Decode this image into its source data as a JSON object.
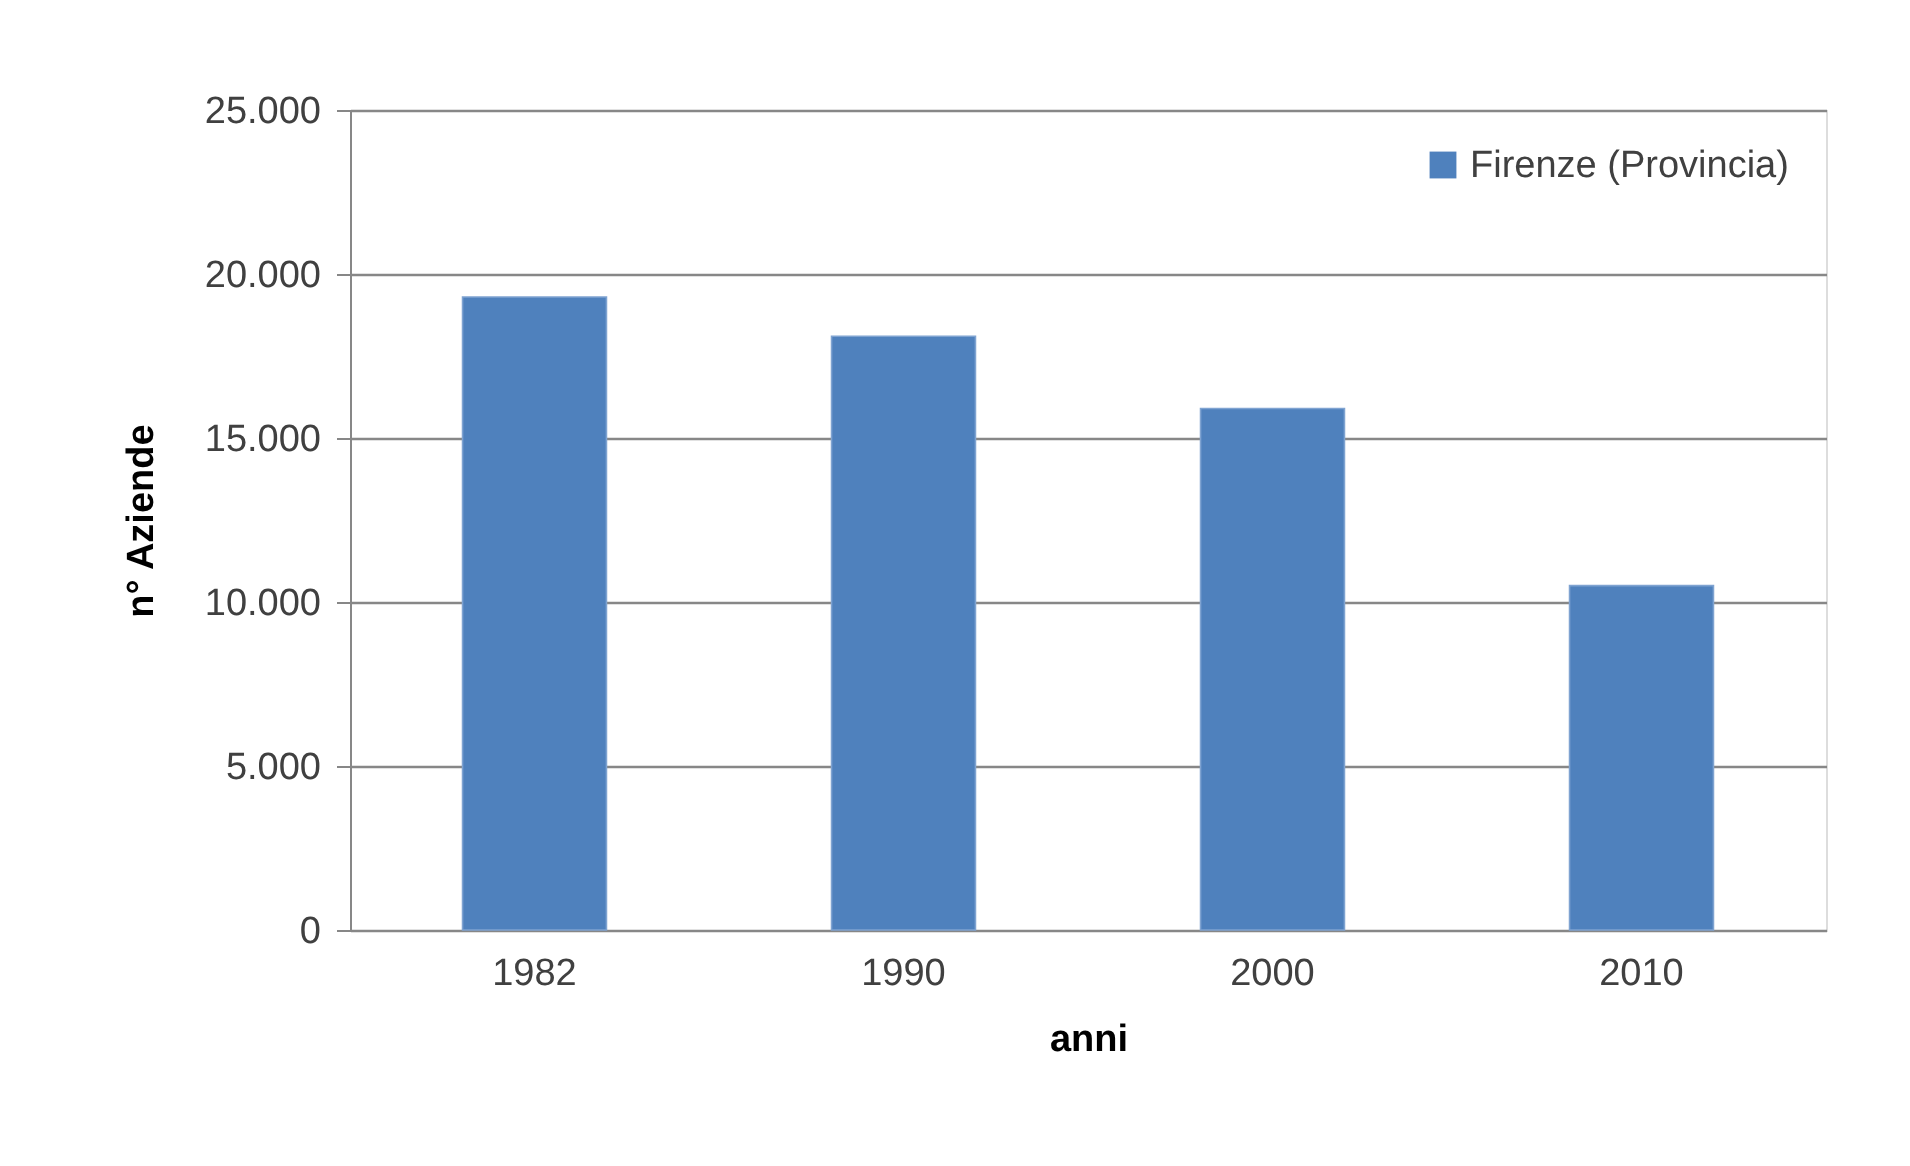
{
  "chart_data": {
    "type": "bar",
    "xlabel": "anni",
    "ylabel": "n° Aziende",
    "categories": [
      "1982",
      "1990",
      "2000",
      "2010"
    ],
    "series": [
      {
        "name": "Firenze (Provincia)",
        "color": "#4f81bd",
        "values": [
          19300,
          18100,
          15900,
          10500
        ]
      }
    ],
    "ylim": [
      0,
      25000
    ],
    "yticks": [
      0,
      {
        "value": 5000,
        "label": "5.000"
      },
      {
        "value": 10000,
        "label": "10.000"
      },
      {
        "value": 15000,
        "label": "15.000"
      },
      {
        "value": 20000,
        "label": "20.000"
      },
      {
        "value": 25000,
        "label": "25.000"
      }
    ],
    "grid": "y",
    "legend": "top right"
  }
}
